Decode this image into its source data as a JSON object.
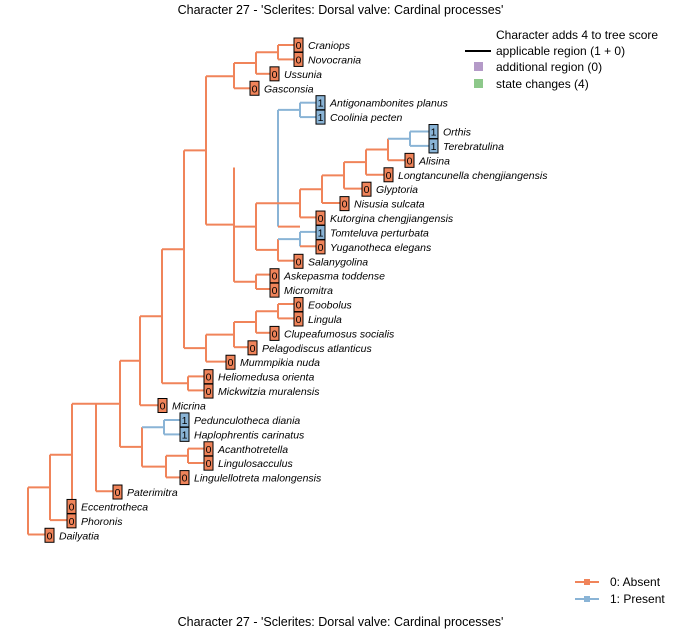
{
  "title": "Character 27 - 'Sclerites: Dorsal valve: Cardinal processes'",
  "colors": {
    "state0": "#f0845a",
    "state1": "#8ab4d6",
    "additional": "#b49ac8",
    "changes": "#8dc88a",
    "box0": "#f0845a",
    "box1": "#8ab4d6"
  },
  "score_legend": {
    "heading": "Character adds 4 to tree score",
    "applicable": "applicable region (1 + 0)",
    "additional": "additional region (0)",
    "changes": "state changes (4)"
  },
  "state_legend": [
    {
      "label": "0: Absent",
      "color": "#f0845a"
    },
    {
      "label": "1: Present",
      "color": "#8ab4d6"
    }
  ],
  "taxa": [
    {
      "name": "Craniops",
      "state": "0"
    },
    {
      "name": "Novocrania",
      "state": "0"
    },
    {
      "name": "Ussunia",
      "state": "0"
    },
    {
      "name": "Gasconsia",
      "state": "0"
    },
    {
      "name": "Antigonambonites planus",
      "state": "1"
    },
    {
      "name": "Coolinia pecten",
      "state": "1"
    },
    {
      "name": "Orthis",
      "state": "1"
    },
    {
      "name": "Terebratulina",
      "state": "1"
    },
    {
      "name": "Alisina",
      "state": "0"
    },
    {
      "name": "Longtancunella chengjiangensis",
      "state": "0"
    },
    {
      "name": "Glyptoria",
      "state": "0"
    },
    {
      "name": "Nisusia sulcata",
      "state": "0"
    },
    {
      "name": "Kutorgina chengjiangensis",
      "state": "0"
    },
    {
      "name": "Tomteluva perturbata",
      "state": "1"
    },
    {
      "name": "Yuganotheca elegans",
      "state": "0"
    },
    {
      "name": "Salanygolina",
      "state": "0"
    },
    {
      "name": "Askepasma toddense",
      "state": "0"
    },
    {
      "name": "Micromitra",
      "state": "0"
    },
    {
      "name": "Eoobolus",
      "state": "0"
    },
    {
      "name": "Lingula",
      "state": "0"
    },
    {
      "name": "Clupeafumosus socialis",
      "state": "0"
    },
    {
      "name": "Pelagodiscus atlanticus",
      "state": "0"
    },
    {
      "name": "Mummpikia nuda",
      "state": "0"
    },
    {
      "name": "Heliomedusa orienta",
      "state": "0"
    },
    {
      "name": "Mickwitzia muralensis",
      "state": "0"
    },
    {
      "name": "Micrina",
      "state": "0"
    },
    {
      "name": "Pedunculotheca diania",
      "state": "1"
    },
    {
      "name": "Haplophrentis carinatus",
      "state": "1"
    },
    {
      "name": "Acanthotretella",
      "state": "0"
    },
    {
      "name": "Lingulosacculus",
      "state": "0"
    },
    {
      "name": "Lingulellotreta malongensis",
      "state": "0"
    },
    {
      "name": "Paterimitra",
      "state": "0"
    },
    {
      "name": "Eccentrotheca",
      "state": "0"
    },
    {
      "name": "Phoronis",
      "state": "0"
    },
    {
      "name": "Dailyatia",
      "state": "0"
    }
  ]
}
